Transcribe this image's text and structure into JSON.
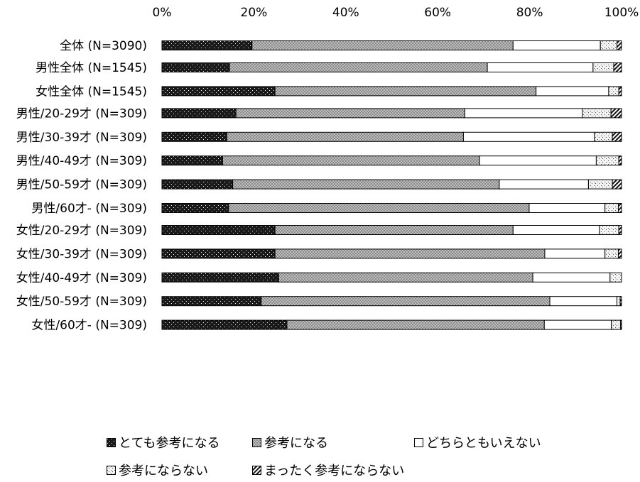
{
  "chart_data": {
    "type": "bar",
    "orientation": "horizontal",
    "stacked": true,
    "percent_stacked": true,
    "title": "",
    "xlabel": "",
    "ylabel": "",
    "xlim": [
      0,
      100
    ],
    "x_ticks": [
      "0%",
      "20%",
      "40%",
      "60%",
      "80%",
      "100%"
    ],
    "grid": false,
    "legend_position": "bottom",
    "categories": [
      "全体 (N=3090)",
      "男性全体 (N=1545)",
      "女性全体 (N=1545)",
      "男性/20-29才 (N=309)",
      "男性/30-39才 (N=309)",
      "男性/40-49才 (N=309)",
      "男性/50-59才 (N=309)",
      "男性/60才- (N=309)",
      "女性/20-29才 (N=309)",
      "女性/30-39才 (N=309)",
      "女性/40-49才 (N=309)",
      "女性/50-59才 (N=309)",
      "女性/60才- (N=309)"
    ],
    "groups": [
      [
        0
      ],
      [
        1,
        2
      ],
      [
        3,
        4,
        5,
        6,
        7
      ],
      [
        8,
        9,
        10,
        11,
        12
      ]
    ],
    "series": [
      {
        "name": "とても参考になる",
        "pattern": "dark-dots",
        "values": [
          19.6,
          14.7,
          24.6,
          16.1,
          14.1,
          13.2,
          15.4,
          14.5,
          24.6,
          24.6,
          25.4,
          21.6,
          27.2
        ]
      },
      {
        "name": "参考になる",
        "pattern": "gray-checker",
        "values": [
          56.8,
          56.1,
          56.8,
          49.8,
          51.5,
          55.9,
          58.0,
          65.4,
          51.8,
          58.7,
          55.3,
          62.8,
          56.0
        ]
      },
      {
        "name": "どちらともいえない",
        "pattern": "white",
        "values": [
          19.0,
          23.0,
          15.8,
          25.6,
          28.5,
          25.4,
          19.4,
          16.5,
          18.8,
          13.1,
          16.8,
          14.6,
          14.6
        ]
      },
      {
        "name": "参考にならない",
        "pattern": "light-dots",
        "values": [
          3.6,
          4.5,
          2.2,
          6.2,
          3.9,
          4.9,
          5.2,
          2.9,
          4.2,
          2.9,
          2.5,
          0.7,
          2.0
        ]
      },
      {
        "name": "まったく参考にならない",
        "pattern": "diagonal",
        "values": [
          1.0,
          1.7,
          0.6,
          2.3,
          2.0,
          0.6,
          2.0,
          0.7,
          0.6,
          0.7,
          0.0,
          0.3,
          0.2
        ]
      }
    ]
  }
}
